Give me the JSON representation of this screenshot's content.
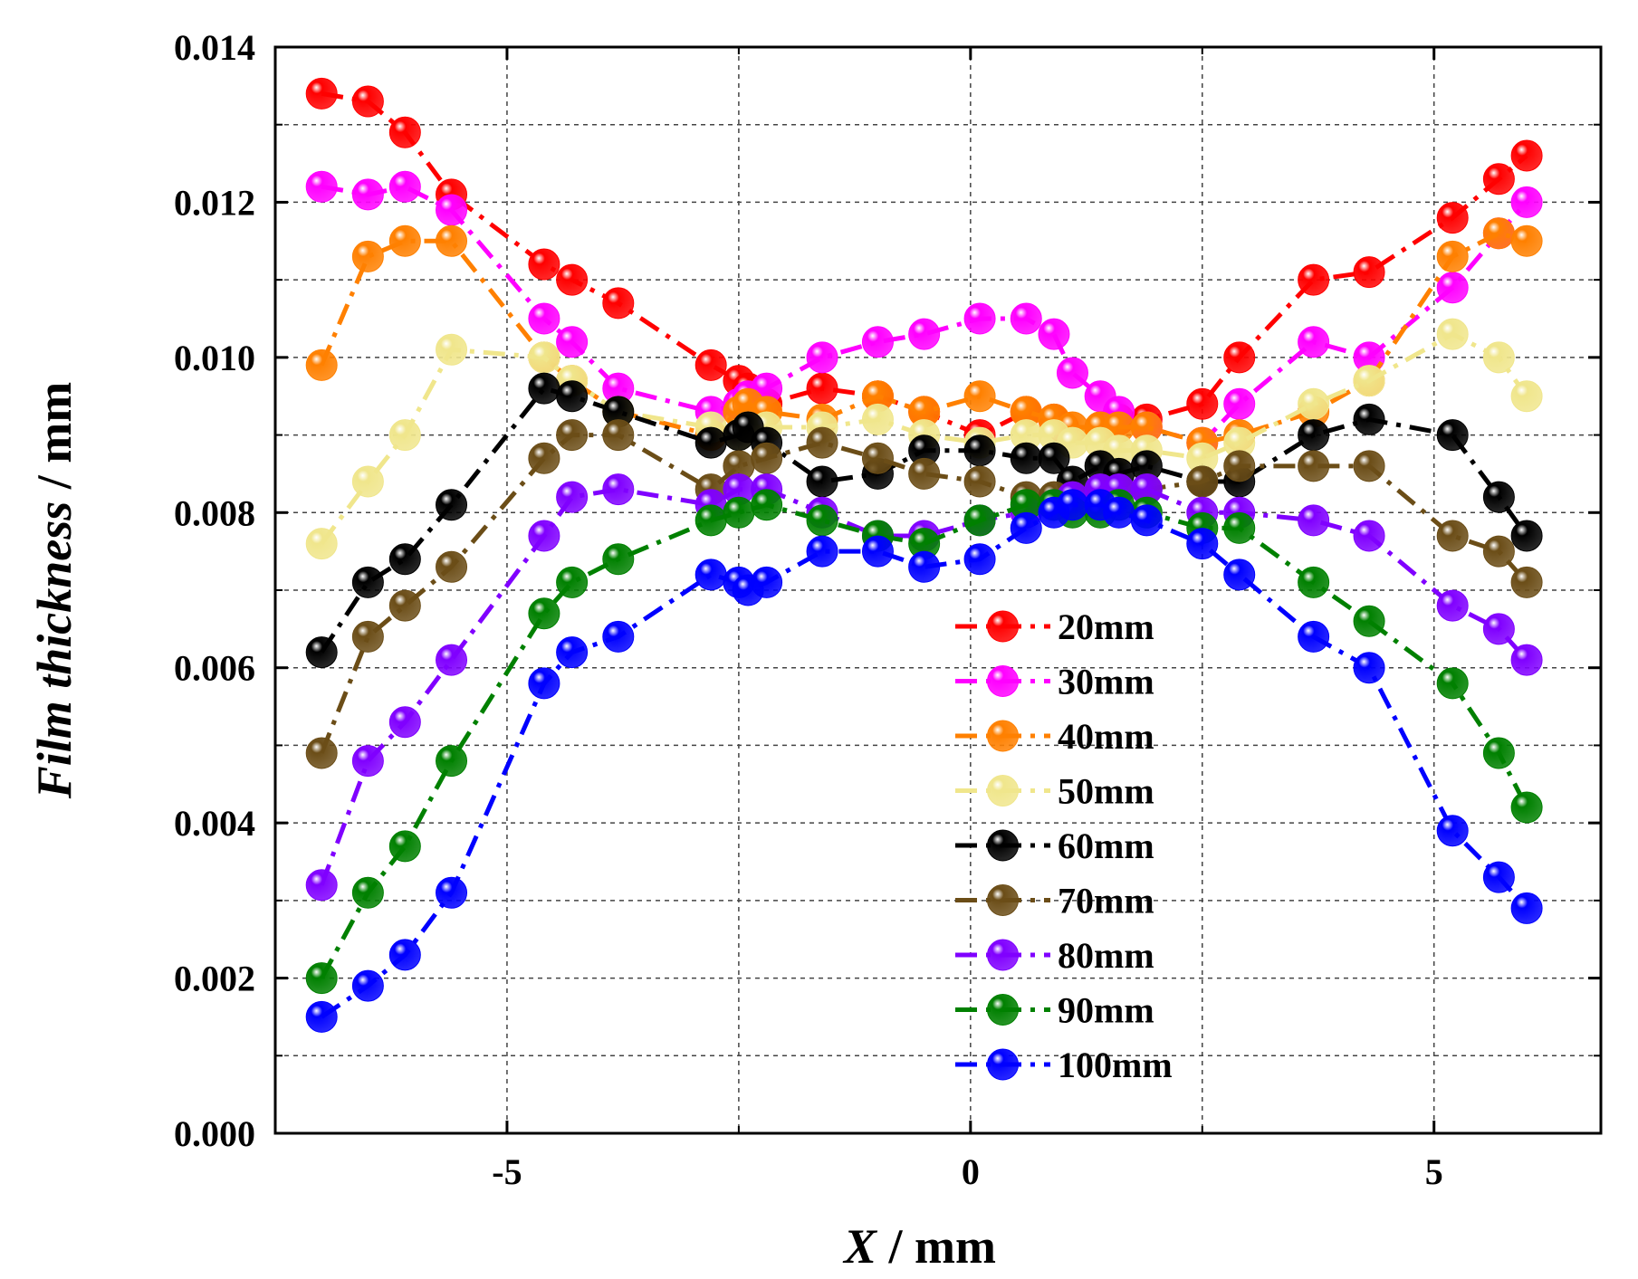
{
  "chart_data": {
    "type": "line",
    "title": "",
    "xlabel_var": "X",
    "xlabel_unit": " / mm",
    "ylabel_var": "Film thickness",
    "ylabel_unit": " / mm",
    "xlim": [
      -7.5,
      6.8
    ],
    "ylim": [
      0,
      0.014
    ],
    "xticks": [
      -5,
      0,
      5
    ],
    "xtick_labels": [
      "-5",
      "0",
      "5"
    ],
    "yticks": [
      0,
      0.002,
      0.004,
      0.006,
      0.008,
      0.01,
      0.012,
      0.014
    ],
    "ytick_labels": [
      "0.000",
      "0.002",
      "0.004",
      "0.006",
      "0.008",
      "0.010",
      "0.012",
      "0.014"
    ],
    "grid": true,
    "legend_position": "center-right",
    "series": [
      {
        "name": "20mm",
        "color": "#ff0000",
        "x": [
          -7.0,
          -6.5,
          -6.1,
          -5.6,
          -4.6,
          -4.3,
          -3.8,
          -2.8,
          -2.5,
          -2.4,
          -2.2,
          -1.6,
          -1.0,
          -0.5,
          0.1,
          0.6,
          0.9,
          1.0,
          1.4,
          1.6,
          1.9,
          2.5,
          2.9,
          3.7,
          4.3,
          5.2,
          5.7,
          6.0
        ],
        "y": [
          0.0134,
          0.0133,
          0.0129,
          0.0121,
          0.0112,
          0.011,
          0.0107,
          0.0099,
          0.0097,
          0.0096,
          0.0094,
          0.0096,
          0.0095,
          0.0093,
          0.009,
          0.0093,
          0.0092,
          0.0091,
          0.0091,
          0.0092,
          0.0092,
          0.0094,
          0.01,
          0.011,
          0.0111,
          0.0118,
          0.0123,
          0.0126
        ]
      },
      {
        "name": "30mm",
        "color": "#ff00ff",
        "x": [
          -7.0,
          -6.5,
          -6.1,
          -5.6,
          -4.6,
          -4.3,
          -3.8,
          -2.8,
          -2.5,
          -2.4,
          -2.2,
          -1.6,
          -1.0,
          -0.5,
          0.1,
          0.6,
          0.9,
          1.1,
          1.4,
          1.6,
          1.9,
          2.5,
          2.9,
          3.7,
          4.3,
          5.2,
          5.7,
          6.0
        ],
        "y": [
          0.0122,
          0.0121,
          0.0122,
          0.0119,
          0.0105,
          0.0102,
          0.0096,
          0.0093,
          0.0094,
          0.0095,
          0.0096,
          0.01,
          0.0102,
          0.0103,
          0.0105,
          0.0105,
          0.0103,
          0.0098,
          0.0095,
          0.0093,
          0.0091,
          0.0089,
          0.0094,
          0.0102,
          0.01,
          0.0109,
          0.0116,
          0.012
        ]
      },
      {
        "name": "40mm",
        "color": "#ff8000",
        "x": [
          -7.0,
          -6.5,
          -6.1,
          -5.6,
          -4.6,
          -4.3,
          -3.8,
          -2.8,
          -2.5,
          -2.4,
          -2.2,
          -1.6,
          -1.0,
          -0.5,
          0.1,
          0.6,
          0.9,
          1.1,
          1.4,
          1.6,
          1.9,
          2.5,
          2.9,
          3.7,
          4.3,
          5.2,
          5.7,
          6.0
        ],
        "y": [
          0.0099,
          0.0113,
          0.0115,
          0.0115,
          0.01,
          0.0097,
          0.0093,
          0.009,
          0.0093,
          0.0094,
          0.0093,
          0.0092,
          0.0095,
          0.0093,
          0.0095,
          0.0093,
          0.0092,
          0.0091,
          0.0091,
          0.0091,
          0.0091,
          0.0089,
          0.009,
          0.0093,
          0.0097,
          0.0113,
          0.0116,
          0.0115
        ]
      },
      {
        "name": "50mm",
        "color": "#f0e68c",
        "x": [
          -7.0,
          -6.5,
          -6.1,
          -5.6,
          -4.6,
          -4.3,
          -3.8,
          -2.8,
          -2.5,
          -2.4,
          -2.2,
          -1.6,
          -1.0,
          -0.5,
          0.1,
          0.6,
          0.9,
          1.1,
          1.4,
          1.6,
          1.9,
          2.5,
          2.9,
          3.7,
          4.3,
          5.2,
          5.7,
          6.0
        ],
        "y": [
          0.0076,
          0.0084,
          0.009,
          0.0101,
          0.01,
          0.0097,
          0.0093,
          0.0091,
          0.009,
          0.0091,
          0.0091,
          0.0091,
          0.0092,
          0.009,
          0.0089,
          0.009,
          0.009,
          0.0089,
          0.0089,
          0.0088,
          0.0088,
          0.0087,
          0.0089,
          0.0094,
          0.0097,
          0.0103,
          0.01,
          0.0095
        ]
      },
      {
        "name": "60mm",
        "color": "#000000",
        "x": [
          -7.0,
          -6.5,
          -6.1,
          -5.6,
          -4.6,
          -4.3,
          -3.8,
          -2.8,
          -2.5,
          -2.4,
          -2.2,
          -1.6,
          -1.0,
          -0.5,
          0.1,
          0.6,
          0.9,
          1.1,
          1.4,
          1.6,
          1.9,
          2.5,
          2.9,
          3.7,
          4.3,
          5.2,
          5.7,
          6.0
        ],
        "y": [
          0.0062,
          0.0071,
          0.0074,
          0.0081,
          0.0096,
          0.0095,
          0.0093,
          0.0089,
          0.009,
          0.0091,
          0.0089,
          0.0084,
          0.0085,
          0.0088,
          0.0088,
          0.0087,
          0.0087,
          0.0084,
          0.0086,
          0.0085,
          0.0086,
          0.0084,
          0.0084,
          0.009,
          0.0092,
          0.009,
          0.0082,
          0.0077
        ]
      },
      {
        "name": "70mm",
        "color": "#6b4d17",
        "x": [
          -7.0,
          -6.5,
          -6.1,
          -5.6,
          -4.6,
          -4.3,
          -3.8,
          -2.8,
          -2.5,
          -2.2,
          -1.6,
          -1.0,
          -0.5,
          0.1,
          0.6,
          0.9,
          1.1,
          1.4,
          1.6,
          1.9,
          2.5,
          2.9,
          3.7,
          4.3,
          5.2,
          5.7,
          6.0
        ],
        "y": [
          0.0049,
          0.0064,
          0.0068,
          0.0073,
          0.0087,
          0.009,
          0.009,
          0.0083,
          0.0086,
          0.0087,
          0.0089,
          0.0087,
          0.0085,
          0.0084,
          0.0082,
          0.0082,
          0.0082,
          0.0083,
          0.0083,
          0.0083,
          0.0084,
          0.0086,
          0.0086,
          0.0086,
          0.0077,
          0.0075,
          0.0071
        ]
      },
      {
        "name": "80mm",
        "color": "#8000ff",
        "x": [
          -7.0,
          -6.5,
          -6.1,
          -5.6,
          -4.6,
          -4.3,
          -3.8,
          -2.8,
          -2.5,
          -2.2,
          -1.6,
          -1.0,
          -0.5,
          0.1,
          0.6,
          0.9,
          1.1,
          1.4,
          1.6,
          1.9,
          2.5,
          2.9,
          3.7,
          4.3,
          5.2,
          5.7,
          6.0
        ],
        "y": [
          0.0032,
          0.0048,
          0.0053,
          0.0061,
          0.0077,
          0.0082,
          0.0083,
          0.0081,
          0.0083,
          0.0083,
          0.008,
          0.0077,
          0.0077,
          0.0079,
          0.008,
          0.0081,
          0.0082,
          0.0083,
          0.0083,
          0.0083,
          0.008,
          0.008,
          0.0079,
          0.0077,
          0.0068,
          0.0065,
          0.0061
        ]
      },
      {
        "name": "90mm",
        "color": "#008000",
        "x": [
          -7.0,
          -6.5,
          -6.1,
          -5.6,
          -4.6,
          -4.3,
          -3.8,
          -2.8,
          -2.5,
          -2.2,
          -1.6,
          -1.0,
          -0.5,
          0.1,
          0.6,
          0.9,
          1.1,
          1.4,
          1.6,
          1.9,
          2.5,
          2.9,
          3.7,
          4.3,
          5.2,
          5.7,
          6.0
        ],
        "y": [
          0.002,
          0.0031,
          0.0037,
          0.0048,
          0.0067,
          0.0071,
          0.0074,
          0.0079,
          0.008,
          0.0081,
          0.0079,
          0.0077,
          0.0076,
          0.0079,
          0.0081,
          0.0081,
          0.008,
          0.008,
          0.0081,
          0.008,
          0.0078,
          0.0078,
          0.0071,
          0.0066,
          0.0058,
          0.0049,
          0.0042
        ]
      },
      {
        "name": "100mm",
        "color": "#0000ff",
        "x": [
          -7.0,
          -6.5,
          -6.1,
          -5.6,
          -4.6,
          -4.3,
          -3.8,
          -2.8,
          -2.5,
          -2.4,
          -2.2,
          -1.6,
          -1.0,
          -0.5,
          0.1,
          0.6,
          0.9,
          1.1,
          1.4,
          1.6,
          1.9,
          2.5,
          2.9,
          3.7,
          4.3,
          5.2,
          5.7,
          6.0
        ],
        "y": [
          0.0015,
          0.0019,
          0.0023,
          0.0031,
          0.0058,
          0.0062,
          0.0064,
          0.0072,
          0.0071,
          0.007,
          0.0071,
          0.0075,
          0.0075,
          0.0073,
          0.0074,
          0.0078,
          0.008,
          0.0081,
          0.0081,
          0.008,
          0.0079,
          0.0076,
          0.0072,
          0.0064,
          0.006,
          0.0039,
          0.0033,
          0.0029
        ]
      }
    ]
  }
}
